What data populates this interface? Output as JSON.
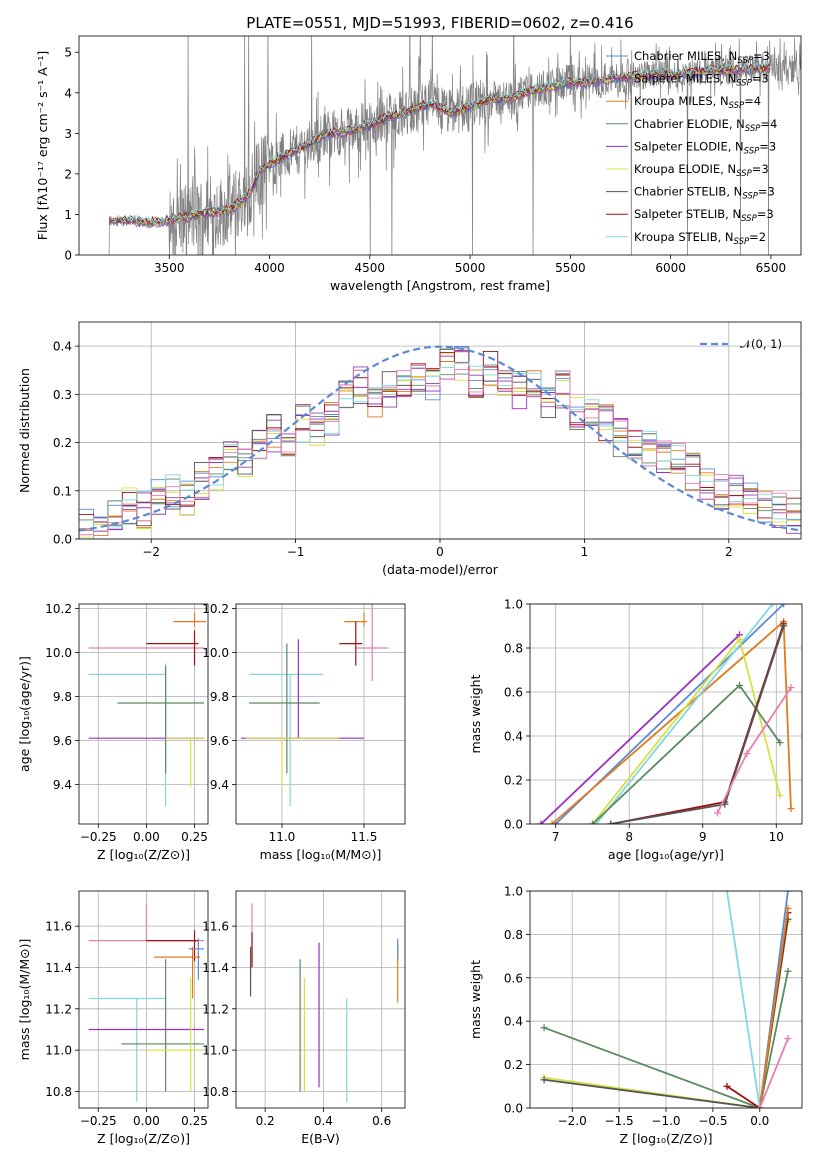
{
  "colors": {
    "chabrier_miles": "#5b8ad6",
    "salpeter_miles": "#8e44ad",
    "kroupa_miles": "#e07b20",
    "chabrier_elodie": "#5a8a5f",
    "salpeter_elodie": "#9b30c0",
    "kroupa_elodie": "#d8e040",
    "chabrier_stelib": "#555555",
    "salpeter_stelib": "#a01010",
    "kroupa_stelib": "#80d8e0",
    "extra_pink": "#e87fb0",
    "spectrum": "#808080",
    "normal": "#5b8ad6"
  },
  "chart_data": [
    {
      "id": "spectrum",
      "type": "line",
      "title": "PLATE=0551, MJD=51993, FIBERID=0602, z=0.416",
      "xlabel": "wavelength [Angstrom, rest frame]",
      "ylabel": "Flux [fλ10⁻¹⁷ erg cm⁻² s⁻¹ A⁻¹]",
      "xlim": [
        3050,
        6650
      ],
      "ylim": [
        0,
        5.4
      ],
      "xticks": [
        3500,
        4000,
        4500,
        5000,
        5500,
        6000,
        6500
      ],
      "yticks": [
        0,
        1,
        2,
        3,
        4,
        5
      ],
      "grid": false,
      "legend_position": "upper right",
      "legend": [
        "Chabrier MILES, N_SSP=3",
        "Salpeter MILES, N_SSP=3",
        "Kroupa MILES, N_SSP=4",
        "Chabrier ELODIE, N_SSP=4",
        "Salpeter ELODIE, N_SSP=3",
        "Kroupa ELODIE, N_SSP=3",
        "Chabrier STELIB, N_SSP=3",
        "Salpeter STELIB, N_SSP=3",
        "Kroupa STELIB, N_SSP=2"
      ],
      "model_continuum": {
        "x": [
          3200,
          3300,
          3400,
          3500,
          3600,
          3700,
          3800,
          3900,
          3950,
          4000,
          4100,
          4200,
          4300,
          4400,
          4500,
          4600,
          4700,
          4800,
          4900,
          5000,
          5100,
          5200,
          5300,
          5400,
          5500,
          5600,
          5700,
          5800,
          5900,
          6000,
          6100,
          6200,
          6300,
          6400,
          6500
        ],
        "y": [
          0.85,
          0.85,
          0.8,
          0.85,
          0.95,
          1.05,
          1.1,
          1.5,
          2.05,
          2.25,
          2.5,
          2.75,
          3.0,
          3.05,
          3.2,
          3.4,
          3.55,
          3.75,
          3.5,
          3.65,
          3.85,
          3.85,
          4.05,
          4.15,
          4.25,
          4.25,
          4.35,
          4.4,
          4.45,
          4.45,
          4.5,
          4.55,
          4.55,
          4.6,
          4.6
        ]
      },
      "data_range": [
        3200,
        6650
      ]
    },
    {
      "id": "residual-histogram",
      "type": "line",
      "xlabel": "(data-model)/error",
      "ylabel": "Normed distribution",
      "xlim": [
        -2.5,
        2.5
      ],
      "ylim": [
        0,
        0.45
      ],
      "xticks": [
        -2,
        -1,
        0,
        1,
        2
      ],
      "yticks": [
        0.0,
        0.1,
        0.2,
        0.3,
        0.4
      ],
      "grid": true,
      "legend_position": "upper right",
      "legend_label": "𝒩(0, 1)",
      "bin_centers": [
        -2.45,
        -2.35,
        -2.25,
        -2.15,
        -2.05,
        -1.95,
        -1.85,
        -1.75,
        -1.65,
        -1.55,
        -1.45,
        -1.35,
        -1.25,
        -1.15,
        -1.05,
        -0.95,
        -0.85,
        -0.75,
        -0.65,
        -0.55,
        -0.45,
        -0.35,
        -0.25,
        -0.15,
        -0.05,
        0.05,
        0.15,
        0.25,
        0.35,
        0.45,
        0.55,
        0.65,
        0.75,
        0.85,
        0.95,
        1.05,
        1.15,
        1.25,
        1.35,
        1.45,
        1.55,
        1.65,
        1.75,
        1.85,
        1.95,
        2.05,
        2.15,
        2.25,
        2.35,
        2.45
      ],
      "histogram": [
        0.03,
        0.03,
        0.05,
        0.07,
        0.06,
        0.09,
        0.1,
        0.09,
        0.12,
        0.14,
        0.17,
        0.16,
        0.2,
        0.22,
        0.2,
        0.24,
        0.23,
        0.25,
        0.29,
        0.32,
        0.28,
        0.31,
        0.32,
        0.33,
        0.32,
        0.37,
        0.36,
        0.33,
        0.35,
        0.32,
        0.31,
        0.33,
        0.29,
        0.31,
        0.26,
        0.27,
        0.24,
        0.21,
        0.2,
        0.19,
        0.17,
        0.16,
        0.14,
        0.12,
        0.1,
        0.1,
        0.08,
        0.07,
        0.06,
        0.05
      ],
      "normal_curve": {
        "mean": 0,
        "sigma": 1
      }
    },
    {
      "id": "age-vs-metallicity",
      "type": "scatter",
      "xlabel": "Z [log₁₀(Z/Z⊙)]",
      "ylabel": "age  [log₁₀(age/yr)]",
      "xlim": [
        -0.35,
        0.32
      ],
      "ylim": [
        9.22,
        10.22
      ],
      "xticks": [
        -0.25,
        0.0,
        0.25
      ],
      "xticklabels": [
        "−0.25",
        "0.00",
        "0.25"
      ],
      "yticks": [
        9.4,
        9.6,
        9.8,
        10.0,
        10.2
      ],
      "grid": true,
      "points": [
        {
          "c": "kroupa_miles",
          "x": 0.25,
          "y": 10.14,
          "xerr": [
            0.11,
            0.06
          ],
          "yerr": [
            0.02,
            0.04
          ]
        },
        {
          "c": "extra_pink",
          "x": 0.0,
          "y": 10.02,
          "xerr": [
            0.3,
            0.3
          ],
          "yerr": [
            0.0,
            0.0
          ]
        },
        {
          "c": "salpeter_stelib",
          "x": 0.25,
          "y": 10.04,
          "xerr": [
            0.25,
            0.02
          ],
          "yerr": [
            0.1,
            0.06
          ]
        },
        {
          "c": "kroupa_stelib",
          "x": 0.1,
          "y": 9.9,
          "xerr": [
            0.4,
            0.0
          ],
          "yerr": [
            0.6,
            0.05
          ]
        },
        {
          "c": "chabrier_elodie",
          "x": 0.1,
          "y": 9.77,
          "xerr": [
            0.25,
            0.2
          ],
          "yerr": [
            0.32,
            0.17
          ]
        },
        {
          "c": "salpeter_elodie",
          "x": -0.05,
          "y": 9.61,
          "xerr": [
            0.25,
            0.35
          ],
          "yerr": [
            0.0,
            0.0
          ]
        },
        {
          "c": "kroupa_elodie",
          "x": 0.23,
          "y": 9.61,
          "xerr": [
            0.13,
            0.07
          ],
          "yerr": [
            0.22,
            0.0
          ]
        }
      ]
    },
    {
      "id": "age-vs-mass",
      "type": "scatter",
      "xlabel": "mass [log₁₀(M/M⊙)]",
      "xlim": [
        10.72,
        11.75
      ],
      "ylim": [
        9.22,
        10.22
      ],
      "xticks": [
        11.0,
        11.5
      ],
      "xticklabels": [
        "11.0",
        "11.5"
      ],
      "yticks": [
        9.4,
        9.6,
        9.8,
        10.0,
        10.2
      ],
      "grid": true,
      "points": [
        {
          "c": "kroupa_miles",
          "x": 11.5,
          "y": 10.14,
          "xerr": [
            0.12,
            0.02
          ],
          "yerr": [
            0.02,
            0.04
          ]
        },
        {
          "c": "extra_pink",
          "x": 11.55,
          "y": 10.02,
          "xerr": [
            0.1,
            0.1
          ],
          "yerr": [
            0.15,
            0.2
          ]
        },
        {
          "c": "salpeter_stelib",
          "x": 11.45,
          "y": 10.04,
          "xerr": [
            0.1,
            0.04
          ],
          "yerr": [
            0.1,
            0.1
          ]
        },
        {
          "c": "kroupa_stelib",
          "x": 11.05,
          "y": 9.9,
          "xerr": [
            0.25,
            0.2
          ],
          "yerr": [
            0.6,
            0.0
          ]
        },
        {
          "c": "chabrier_elodie",
          "x": 11.03,
          "y": 9.77,
          "xerr": [
            0.23,
            0.2
          ],
          "yerr": [
            0.32,
            0.27
          ]
        },
        {
          "c": "salpeter_elodie",
          "x": 11.1,
          "y": 9.61,
          "xerr": [
            0.35,
            0.4
          ],
          "yerr": [
            0.0,
            0.45
          ]
        },
        {
          "c": "kroupa_elodie",
          "x": 11.0,
          "y": 9.61,
          "xerr": [
            0.22,
            0.35
          ],
          "yerr": [
            0.22,
            0.0
          ]
        }
      ]
    },
    {
      "id": "mass-weight-vs-age",
      "type": "line",
      "xlabel": "age  [log₁₀(age/yr)]",
      "ylabel": "mass weight",
      "xlim": [
        6.65,
        10.35
      ],
      "ylim": [
        0,
        1
      ],
      "xticks": [
        7,
        8,
        9,
        10
      ],
      "yticks": [
        0.0,
        0.2,
        0.4,
        0.6,
        0.8,
        1.0
      ],
      "grid": true,
      "series": [
        {
          "c": "salpeter_elodie",
          "x": [
            6.8,
            9.5
          ],
          "y": [
            0.0,
            0.86
          ]
        },
        {
          "c": "chabrier_miles",
          "x": [
            7.0,
            10.1
          ],
          "y": [
            0.0,
            1.0
          ]
        },
        {
          "c": "kroupa_miles",
          "x": [
            6.95,
            10.1,
            10.2
          ],
          "y": [
            0.0,
            0.92,
            0.07
          ]
        },
        {
          "c": "kroupa_stelib",
          "x": [
            7.55,
            9.95
          ],
          "y": [
            0.0,
            1.0
          ]
        },
        {
          "c": "kroupa_elodie",
          "x": [
            7.5,
            9.5,
            10.05
          ],
          "y": [
            0.0,
            0.84,
            0.13
          ]
        },
        {
          "c": "chabrier_elodie",
          "x": [
            7.5,
            9.5,
            10.05
          ],
          "y": [
            0.0,
            0.63,
            0.37
          ]
        },
        {
          "c": "salpeter_stelib",
          "x": [
            7.75,
            9.3,
            10.1
          ],
          "y": [
            0.0,
            0.1,
            0.91
          ]
        },
        {
          "c": "chabrier_stelib",
          "x": [
            7.75,
            9.3,
            10.1
          ],
          "y": [
            0.0,
            0.09,
            0.9
          ]
        },
        {
          "c": "extra_pink",
          "x": [
            9.2,
            9.6,
            10.2
          ],
          "y": [
            0.05,
            0.32,
            0.62
          ]
        }
      ]
    },
    {
      "id": "mass-vs-metallicity",
      "type": "scatter",
      "xlabel": "Z [log₁₀(Z/Z⊙)]",
      "ylabel": "mass [log₁₀(M/M⊙)]",
      "xlim": [
        -0.35,
        0.32
      ],
      "ylim": [
        10.72,
        11.77
      ],
      "xticks": [
        -0.25,
        0.0,
        0.25
      ],
      "xticklabels": [
        "−0.25",
        "0.00",
        "0.25"
      ],
      "yticks": [
        10.8,
        11.0,
        11.2,
        11.4,
        11.6
      ],
      "grid": true,
      "points": [
        {
          "c": "extra_pink",
          "x": 0.0,
          "y": 11.53,
          "xerr": [
            0.3,
            0.3
          ],
          "yerr": [
            0.0,
            0.18
          ]
        },
        {
          "c": "salpeter_stelib",
          "x": 0.25,
          "y": 11.53,
          "xerr": [
            0.25,
            0.02
          ],
          "yerr": [
            0.1,
            0.05
          ]
        },
        {
          "c": "chabrier_miles",
          "x": 0.27,
          "y": 11.49,
          "xerr": [
            0.05,
            0.03
          ],
          "yerr": [
            0.15,
            0.05
          ]
        },
        {
          "c": "kroupa_miles",
          "x": 0.24,
          "y": 11.45,
          "xerr": [
            0.2,
            0.04
          ],
          "yerr": [
            0.2,
            0.05
          ]
        },
        {
          "c": "kroupa_stelib",
          "x": -0.05,
          "y": 11.25,
          "xerr": [
            0.25,
            0.15
          ],
          "yerr": [
            0.5,
            0.0
          ]
        },
        {
          "c": "salpeter_elodie",
          "x": -0.05,
          "y": 11.1,
          "xerr": [
            0.25,
            0.35
          ],
          "yerr": [
            0.0,
            0.0
          ]
        },
        {
          "c": "chabrier_elodie",
          "x": 0.1,
          "y": 11.03,
          "xerr": [
            0.23,
            0.2
          ],
          "yerr": [
            0.23,
            0.41
          ]
        },
        {
          "c": "kroupa_elodie",
          "x": 0.23,
          "y": 11.0,
          "xerr": [
            0.23,
            0.05
          ],
          "yerr": [
            0.2,
            0.35
          ]
        }
      ]
    },
    {
      "id": "mass-vs-extinction",
      "type": "scatter",
      "xlabel": "E(B-V)",
      "xlim": [
        0.1,
        0.68
      ],
      "ylim": [
        10.72,
        11.77
      ],
      "xticks": [
        0.2,
        0.4,
        0.6
      ],
      "xticklabels": [
        "0.2",
        "0.4",
        "0.6"
      ],
      "yticks": [
        10.8,
        11.0,
        11.2,
        11.4,
        11.6
      ],
      "grid": true,
      "points": [
        {
          "c": "extra_pink",
          "x": 0.155,
          "y": 11.53,
          "xerr": [
            0,
            0
          ],
          "yerr": [
            0.1,
            0.18
          ]
        },
        {
          "c": "chabrier_stelib",
          "x": 0.15,
          "y": 11.4,
          "xerr": [
            0,
            0
          ],
          "yerr": [
            0.14,
            0.1
          ]
        },
        {
          "c": "salpeter_stelib",
          "x": 0.155,
          "y": 11.45,
          "xerr": [
            0,
            0
          ],
          "yerr": [
            0.05,
            0.12
          ]
        },
        {
          "c": "chabrier_elodie",
          "x": 0.32,
          "y": 11.2,
          "xerr": [
            0,
            0
          ],
          "yerr": [
            0.4,
            0.24
          ]
        },
        {
          "c": "kroupa_elodie",
          "x": 0.335,
          "y": 11.1,
          "xerr": [
            0,
            0
          ],
          "yerr": [
            0.3,
            0.25
          ]
        },
        {
          "c": "salpeter_elodie",
          "x": 0.385,
          "y": 11.2,
          "xerr": [
            0,
            0
          ],
          "yerr": [
            0.38,
            0.32
          ]
        },
        {
          "c": "kroupa_stelib",
          "x": 0.48,
          "y": 11.0,
          "xerr": [
            0,
            0
          ],
          "yerr": [
            0.25,
            0.25
          ]
        },
        {
          "c": "kroupa_miles",
          "x": 0.655,
          "y": 11.39,
          "xerr": [
            0,
            0
          ],
          "yerr": [
            0.16,
            0.12
          ]
        },
        {
          "c": "chabrier_miles",
          "x": 0.655,
          "y": 11.49,
          "xerr": [
            0,
            0
          ],
          "yerr": [
            0.05,
            0.05
          ]
        }
      ]
    },
    {
      "id": "mass-weight-vs-metallicity",
      "type": "line",
      "xlabel": "Z [log₁₀(Z/Z⊙)]",
      "ylabel": "mass weight",
      "xlim": [
        -2.45,
        0.45
      ],
      "ylim": [
        0,
        1
      ],
      "xticks": [
        -2.0,
        -1.5,
        -1.0,
        -0.5,
        0.0
      ],
      "xticklabels": [
        "−2.0",
        "−1.5",
        "−1.0",
        "−0.5",
        "0.0"
      ],
      "yticks": [
        0.0,
        0.2,
        0.4,
        0.6,
        0.8,
        1.0
      ],
      "grid": true,
      "series": [
        {
          "c": "chabrier_elodie",
          "x": [
            -2.3,
            0.0,
            0.3
          ],
          "y": [
            0.37,
            0.0,
            0.63
          ]
        },
        {
          "c": "kroupa_elodie",
          "x": [
            -2.3,
            0.0,
            0.3
          ],
          "y": [
            0.14,
            0.0,
            0.86
          ]
        },
        {
          "c": "chabrier_stelib",
          "x": [
            -2.3,
            0.0,
            0.3
          ],
          "y": [
            0.13,
            0.0,
            0.87
          ]
        },
        {
          "c": "salpeter_stelib",
          "x": [
            -0.35,
            0.0,
            0.3
          ],
          "y": [
            0.1,
            0.0,
            0.9
          ]
        },
        {
          "c": "chabrier_miles",
          "x": [
            0.0,
            0.3
          ],
          "y": [
            0.0,
            1.0
          ]
        },
        {
          "c": "kroupa_miles",
          "x": [
            0.0,
            0.3
          ],
          "y": [
            0.0,
            0.92
          ]
        },
        {
          "c": "kroupa_stelib",
          "x": [
            -0.35,
            0.0
          ],
          "y": [
            1.0,
            0.0
          ]
        },
        {
          "c": "extra_pink",
          "x": [
            0.0,
            0.3
          ],
          "y": [
            0.0,
            0.32
          ]
        }
      ]
    }
  ],
  "legend_subscript": "SSP"
}
